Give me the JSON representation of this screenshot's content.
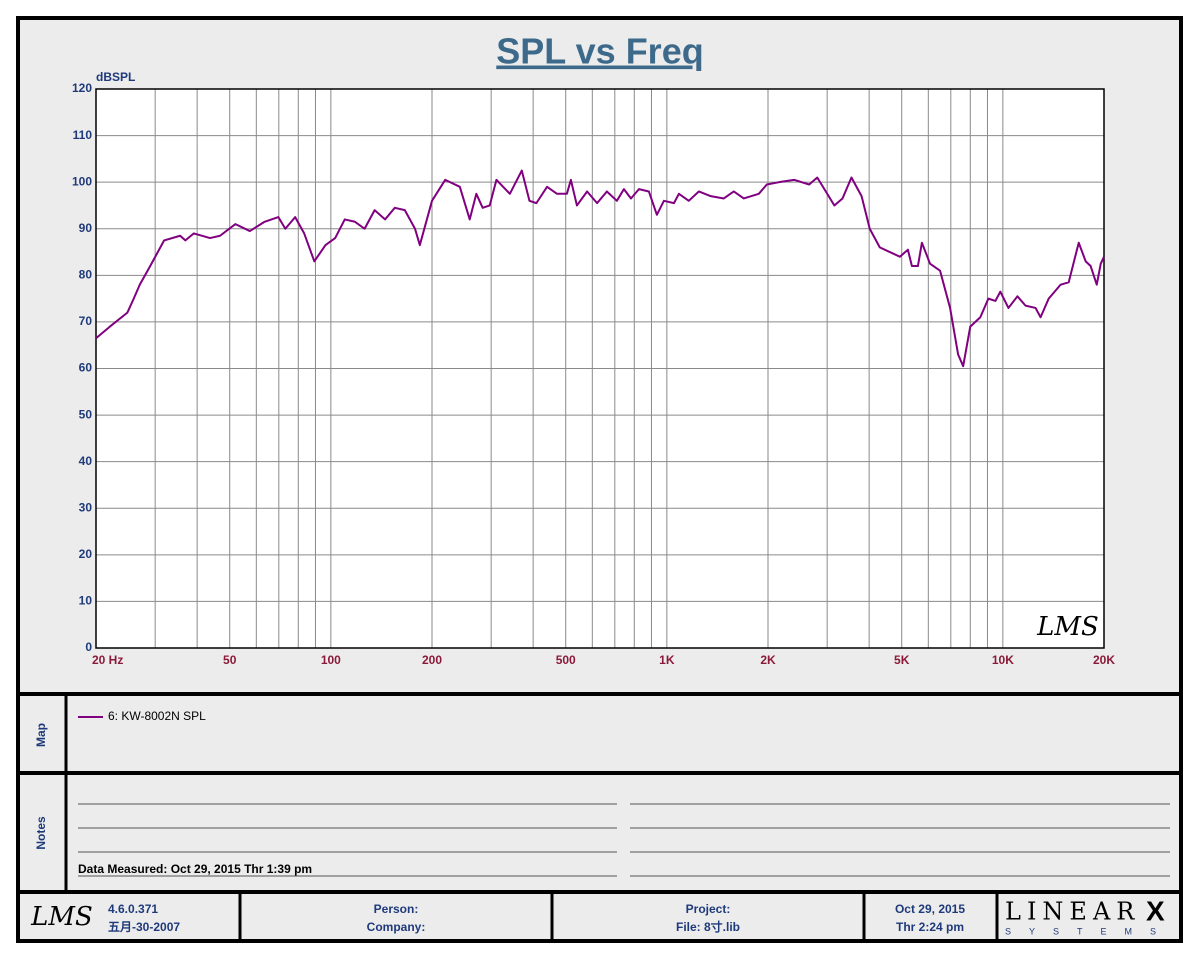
{
  "chart_data": {
    "type": "line",
    "title": "SPL vs Freq",
    "ylabel": "dBSPL",
    "logo": "LMS",
    "xscale": "log",
    "xlim": [
      20,
      20000
    ],
    "ylim": [
      0,
      120
    ],
    "yticks": [
      0,
      10,
      20,
      30,
      40,
      50,
      60,
      70,
      80,
      90,
      100,
      110,
      120
    ],
    "xticks": [
      {
        "value": 20,
        "label": "20  Hz"
      },
      50,
      100,
      200,
      500,
      {
        "value": 1000,
        "label": "1K"
      },
      {
        "value": 2000,
        "label": "2K"
      },
      {
        "value": 5000,
        "label": "5K"
      },
      {
        "value": 10000,
        "label": "10K"
      },
      {
        "value": 20000,
        "label": "20K"
      }
    ],
    "xgrid": [
      20,
      30,
      40,
      50,
      60,
      70,
      80,
      90,
      100,
      200,
      300,
      400,
      500,
      600,
      700,
      800,
      900,
      1000,
      2000,
      3000,
      4000,
      5000,
      6000,
      7000,
      8000,
      9000,
      10000,
      20000
    ],
    "grid": true,
    "x": [
      20,
      22,
      24.8,
      25.9,
      27,
      29,
      31.9,
      35.6,
      36.9,
      39.1,
      43.7,
      46.8,
      52,
      57.4,
      63.5,
      69.8,
      73.2,
      78.3,
      83.3,
      89.3,
      96.4,
      103,
      110,
      118,
      126,
      135,
      145,
      155,
      166,
      178,
      184,
      200,
      219,
      242,
      259,
      271,
      283,
      297,
      311,
      341,
      370,
      390,
      409,
      440,
      471,
      504,
      518,
      540,
      579,
      620,
      663,
      710,
      745,
      782,
      826,
      884,
      934,
      980,
      1050,
      1086,
      1162,
      1245,
      1351,
      1477,
      1582,
      1694,
      1878,
      1984,
      2157,
      2392,
      2652,
      2803,
      3152,
      3332,
      3543,
      3798,
      4016,
      4302,
      4609,
      4937,
      5217,
      5361,
      5587,
      5743,
      6070,
      6502,
      6965,
      7361,
      7619,
      7999,
      8569,
      9055,
      9502,
      9830,
      10390,
      11050,
      11680,
      12510,
      12950,
      13690,
      14860,
      15700,
      16820,
      17640,
      18250,
      19030,
      19560,
      20000
    ],
    "series": [
      {
        "name": "6: KW-8002N SPL",
        "color": "#800080",
        "values": [
          66.5,
          69,
          72,
          75,
          78,
          82,
          87.5,
          88.5,
          87.5,
          89,
          88,
          88.5,
          91,
          89.5,
          91.5,
          92.5,
          90,
          92.5,
          89,
          83,
          86.5,
          88,
          92,
          91.5,
          90,
          94,
          92,
          94.5,
          94,
          90,
          86.5,
          96,
          100.5,
          99,
          92,
          97.5,
          94.5,
          95,
          100.5,
          97.5,
          102.5,
          96,
          95.5,
          99,
          97.5,
          97.5,
          100.5,
          95,
          98,
          95.5,
          98,
          96,
          98.5,
          96.5,
          98.5,
          98,
          93,
          96,
          95.5,
          97.5,
          96,
          98,
          97,
          96.5,
          98,
          96.5,
          97.5,
          99.5,
          100,
          100.5,
          99.5,
          101,
          95,
          96.5,
          101,
          97,
          90,
          86,
          85,
          84,
          85.5,
          82,
          82,
          87,
          82.5,
          81,
          73,
          63,
          60.5,
          69,
          71,
          75,
          74.5,
          76.5,
          73,
          75.5,
          73.5,
          73,
          71,
          75,
          78,
          78.5,
          87,
          83,
          82,
          78,
          82.5,
          84
        ]
      }
    ]
  },
  "map": {
    "label": "Map"
  },
  "notes": {
    "label": "Notes",
    "measured": "Data Measured: Oct 29, 2015  Thr  1:39 pm"
  },
  "footer": {
    "logo": "LMS",
    "version": "4.6.0.371",
    "build_date": "五月-30-2007",
    "person": "Person:",
    "company": "Company:",
    "project": "Project:",
    "file": "File: 8寸.lib",
    "date": "Oct 29, 2015",
    "time": "Thr  2:24 pm",
    "brand": "LINEAR",
    "brand_mark": "X",
    "brand_sub": "SYSTEMS"
  }
}
